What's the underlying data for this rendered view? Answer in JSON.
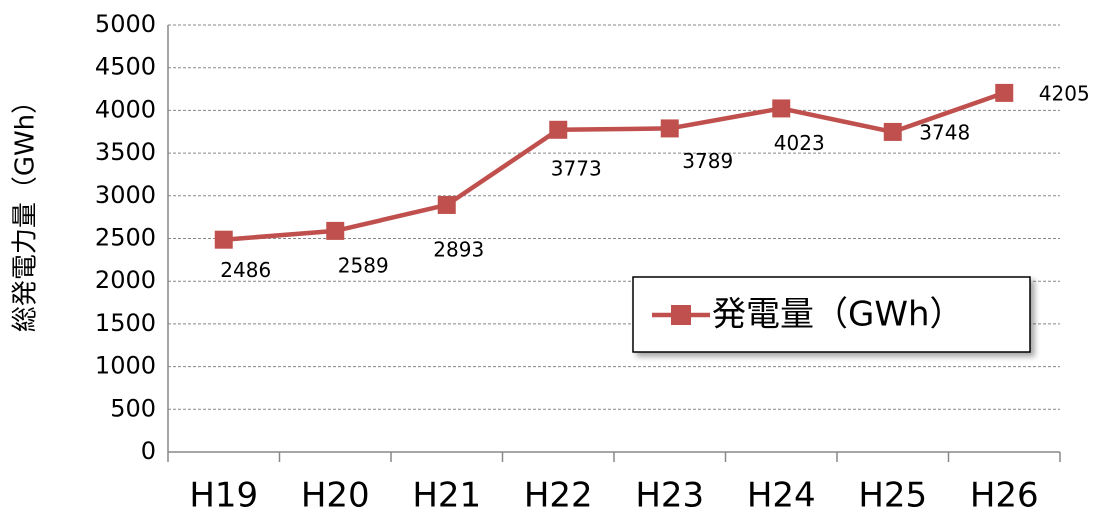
{
  "chart_data": {
    "type": "line",
    "y_label": "総発電力量（GWh）",
    "categories": [
      "H19",
      "H20",
      "H21",
      "H22",
      "H23",
      "H24",
      "H25",
      "H26"
    ],
    "series": [
      {
        "name": "発電量（GWh）",
        "color": "#c0504d",
        "values": [
          2486,
          2589,
          2893,
          3773,
          3789,
          4023,
          3748,
          4205
        ]
      }
    ],
    "ylim": [
      0,
      5000
    ],
    "yticks": [
      0,
      500,
      1000,
      1500,
      2000,
      2500,
      3000,
      3500,
      4000,
      4500,
      5000
    ],
    "grid": true,
    "legend": "lower right",
    "data_labels": true
  }
}
